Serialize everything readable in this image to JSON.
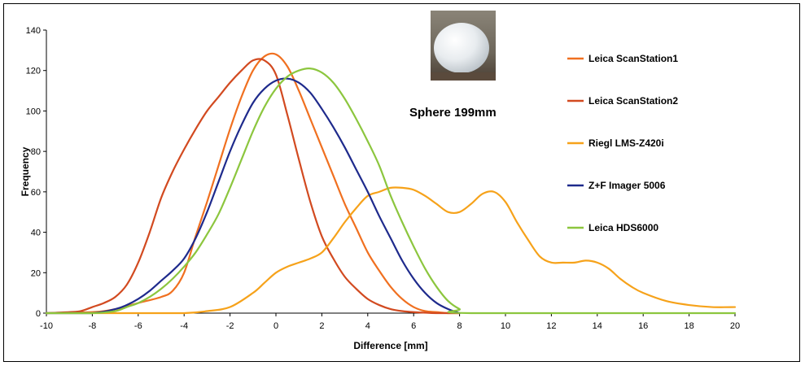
{
  "chart_data": {
    "type": "line",
    "annotation": "Sphere 199mm",
    "xlabel": "Difference [mm]",
    "ylabel": "Frequency",
    "xlim": [
      -10,
      20
    ],
    "ylim": [
      0,
      140
    ],
    "x_ticks": [
      -10,
      -8,
      -6,
      -4,
      -2,
      0,
      2,
      4,
      6,
      8,
      10,
      12,
      14,
      16,
      18,
      20
    ],
    "y_ticks": [
      0,
      20,
      40,
      60,
      80,
      100,
      120,
      140
    ],
    "grid": false,
    "legend_position": "right",
    "series": [
      {
        "name": "Leica ScanStation1",
        "color": "#f07020",
        "x": [
          -10,
          -8,
          -7,
          -6,
          -5,
          -4.5,
          -4,
          -3.5,
          -3,
          -2.5,
          -2,
          -1.5,
          -1,
          -0.5,
          0,
          0.5,
          1,
          1.5,
          2,
          2.5,
          3,
          3.5,
          4,
          4.5,
          5,
          5.5,
          6,
          6.5,
          7,
          7.5,
          8
        ],
        "values": [
          0,
          0.5,
          2,
          5,
          8,
          11,
          20,
          38,
          55,
          73,
          91,
          107,
          120,
          127,
          128,
          122,
          110,
          96,
          82,
          68,
          54,
          42,
          30,
          21,
          13,
          7,
          3,
          1,
          0.5,
          0,
          0
        ]
      },
      {
        "name": "Leica ScanStation2",
        "color": "#d24a20",
        "x": [
          -10,
          -9,
          -8.5,
          -8,
          -7.5,
          -7,
          -6.5,
          -6,
          -5.5,
          -5,
          -4.5,
          -4,
          -3.5,
          -3,
          -2.5,
          -2,
          -1.5,
          -1,
          -0.5,
          0,
          0.5,
          1,
          1.5,
          2,
          2.5,
          3,
          3.5,
          4,
          4.5,
          5,
          5.5,
          6,
          7,
          8
        ],
        "values": [
          0,
          0.5,
          1,
          3,
          5,
          8,
          14,
          25,
          40,
          57,
          70,
          81,
          91,
          100,
          107,
          114,
          120,
          125,
          125,
          118,
          98,
          76,
          55,
          38,
          27,
          18,
          12,
          7,
          4,
          2,
          1,
          0.5,
          0,
          0
        ]
      },
      {
        "name": "Riegl LMS-Z420i",
        "color": "#f6a21a",
        "x": [
          -10,
          -6,
          -4,
          -3,
          -2,
          -1,
          -0.5,
          0,
          0.5,
          1,
          1.5,
          2,
          2.5,
          3,
          3.5,
          4,
          4.5,
          5,
          5.5,
          6,
          6.5,
          7,
          7.5,
          8,
          8.5,
          9,
          9.5,
          10,
          10.5,
          11,
          11.5,
          12,
          12.5,
          13,
          13.5,
          14,
          14.5,
          15,
          15.5,
          16,
          17,
          18,
          19,
          20
        ],
        "values": [
          0,
          0,
          0,
          1,
          3,
          10,
          15,
          20,
          23,
          25,
          27,
          30,
          37,
          45,
          52,
          58,
          60,
          62,
          62,
          61,
          58,
          54,
          50,
          50,
          54,
          59,
          60,
          55,
          45,
          36,
          28,
          25,
          25,
          25,
          26,
          25,
          22,
          17,
          13,
          10,
          6,
          4,
          3,
          3
        ]
      },
      {
        "name": "Z+F Imager 5006",
        "color": "#1e2a8c",
        "x": [
          -10,
          -8,
          -7,
          -6.5,
          -6,
          -5.5,
          -5,
          -4.5,
          -4,
          -3.5,
          -3,
          -2.5,
          -2,
          -1.5,
          -1,
          -0.5,
          0,
          0.5,
          1,
          1.5,
          2,
          2.5,
          3,
          3.5,
          4,
          4.5,
          5,
          5.5,
          6,
          6.5,
          7,
          7.5,
          8
        ],
        "values": [
          0,
          0,
          2,
          4,
          7,
          11,
          16,
          21,
          27,
          37,
          50,
          65,
          80,
          93,
          104,
          111,
          115,
          116,
          114,
          109,
          101,
          92,
          82,
          71,
          60,
          48,
          37,
          26,
          17,
          10,
          5,
          2,
          0
        ]
      },
      {
        "name": "Leica HDS6000",
        "color": "#8cc63e",
        "x": [
          -10,
          -8,
          -7,
          -6.5,
          -6,
          -5.5,
          -5,
          -4.5,
          -4,
          -3.5,
          -3,
          -2.5,
          -2,
          -1.5,
          -1,
          -0.5,
          0,
          0.5,
          1,
          1.5,
          2,
          2.5,
          3,
          3.5,
          4,
          4.5,
          5,
          5.5,
          6,
          6.5,
          7,
          7.5,
          8,
          8.5,
          20
        ],
        "values": [
          0,
          0,
          1,
          3,
          5,
          8,
          12,
          17,
          23,
          30,
          39,
          49,
          62,
          76,
          90,
          102,
          111,
          117,
          120,
          121,
          119,
          114,
          106,
          96,
          85,
          73,
          58,
          45,
          33,
          22,
          13,
          6,
          2,
          0,
          0
        ]
      }
    ]
  }
}
